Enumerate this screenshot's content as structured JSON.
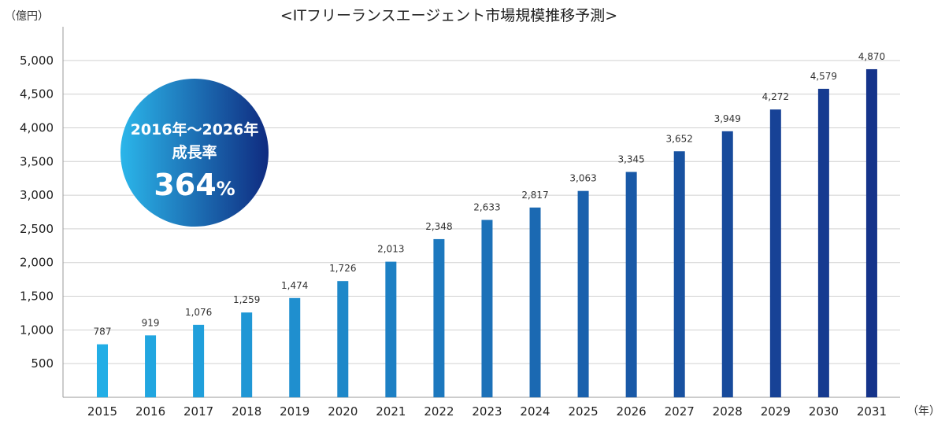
{
  "chart_data": {
    "type": "bar",
    "title": "<ITフリーランスエージェント市場規模推移予測>",
    "ylabel": "（億円）",
    "xlabel": "（年）",
    "categories": [
      "2015",
      "2016",
      "2017",
      "2018",
      "2019",
      "2020",
      "2021",
      "2022",
      "2023",
      "2024",
      "2025",
      "2026",
      "2027",
      "2028",
      "2029",
      "2030",
      "2031"
    ],
    "values": [
      787,
      919,
      1076,
      1259,
      1474,
      1726,
      2013,
      2348,
      2633,
      2817,
      3063,
      3345,
      3652,
      3949,
      4272,
      4579,
      4870
    ],
    "value_labels": [
      "787",
      "919",
      "1,076",
      "1,259",
      "1,474",
      "1,726",
      "2,013",
      "2,348",
      "2,633",
      "2,817",
      "3,063",
      "3,345",
      "3,652",
      "3,949",
      "4,272",
      "4,579",
      "4,870"
    ],
    "ylim": [
      0,
      5500
    ],
    "yticks": [
      500,
      1000,
      1500,
      2000,
      2500,
      3000,
      3500,
      4000,
      4500,
      5000
    ],
    "ytick_labels": [
      "500",
      "1,000",
      "1,500",
      "2,000",
      "2,500",
      "3,000",
      "3,500",
      "4,000",
      "4,500",
      "5,000"
    ],
    "grid": true,
    "bar_color_start": "#22aee6",
    "bar_color_end": "#15338a",
    "annotation": {
      "line1": "2016年～2026年",
      "line2": "成長率",
      "value": "364",
      "unit": "%",
      "gradient_start": "#2bb6ea",
      "gradient_end": "#0f2b80"
    }
  }
}
